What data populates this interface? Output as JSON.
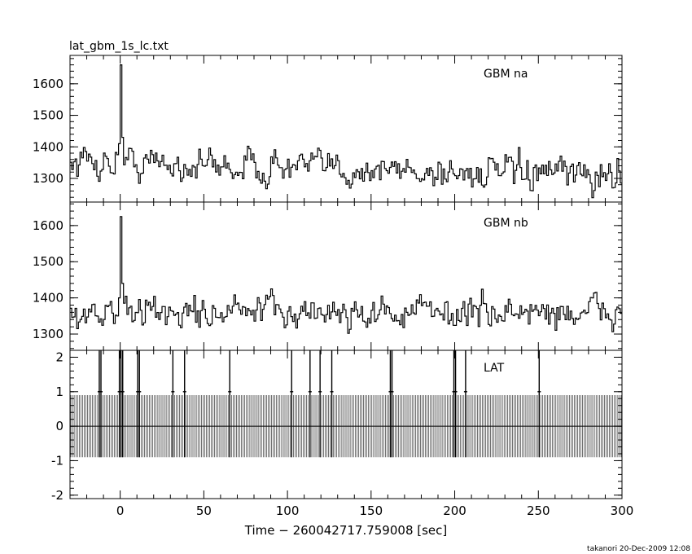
{
  "chart_data": {
    "type": "line",
    "title": "lat_gbm_1s_lc.txt",
    "xlabel": "Time − 260042717.759008 [sec]",
    "xlim": [
      -30,
      300
    ],
    "xticks": [
      0,
      50,
      100,
      150,
      200,
      250,
      300
    ],
    "footer": "takanori 20-Dec-2009 12:08",
    "panels": [
      {
        "label": "GBM na",
        "type": "line",
        "ylim": [
          1225,
          1690
        ],
        "yticks": [
          1300,
          1400,
          1500,
          1600
        ],
        "baseline": 1355,
        "trend_end": 1305,
        "noise": 42,
        "spikes": [
          [
            0,
            1660
          ],
          [
            -1,
            1410
          ],
          [
            1,
            1430
          ]
        ]
      },
      {
        "label": "GBM nb",
        "type": "line",
        "ylim": [
          1255,
          1665
        ],
        "yticks": [
          1300,
          1400,
          1500,
          1600
        ],
        "baseline": 1360,
        "trend_end": 1360,
        "noise": 36,
        "spikes": [
          [
            0,
            1625
          ],
          [
            -1,
            1400
          ],
          [
            1,
            1440
          ]
        ]
      },
      {
        "label": "LAT",
        "type": "bar",
        "ylim": [
          -2.1,
          2.2
        ],
        "yticks": [
          -2,
          -1,
          0,
          1,
          2
        ],
        "carrier_top": 0.9,
        "carrier_bottom": -0.9,
        "events": [
          -13,
          -12,
          -1,
          0,
          1,
          10,
          11,
          31,
          38,
          65,
          102,
          113,
          119,
          126,
          161,
          162,
          199,
          200,
          206,
          250
        ]
      }
    ]
  }
}
